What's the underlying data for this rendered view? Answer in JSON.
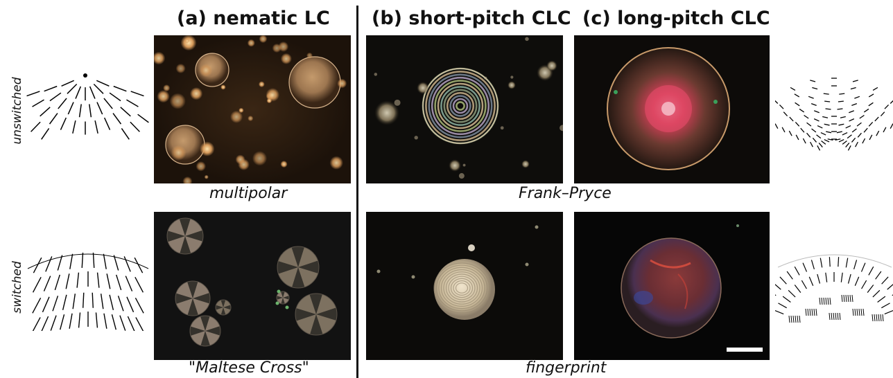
{
  "columns": [
    {
      "title": "(a) nematic LC"
    },
    {
      "title": "(b) short-pitch CLC"
    },
    {
      "title": "(c) long-pitch CLC"
    }
  ],
  "rows": [
    {
      "label": "unswitched"
    },
    {
      "label": "switched"
    }
  ],
  "captions": {
    "nematic_unswitched": "multipolar",
    "nematic_switched": "\"Maltese Cross\"",
    "clc_unswitched": "Frank–Pryce",
    "clc_switched": "fingerprint"
  }
}
